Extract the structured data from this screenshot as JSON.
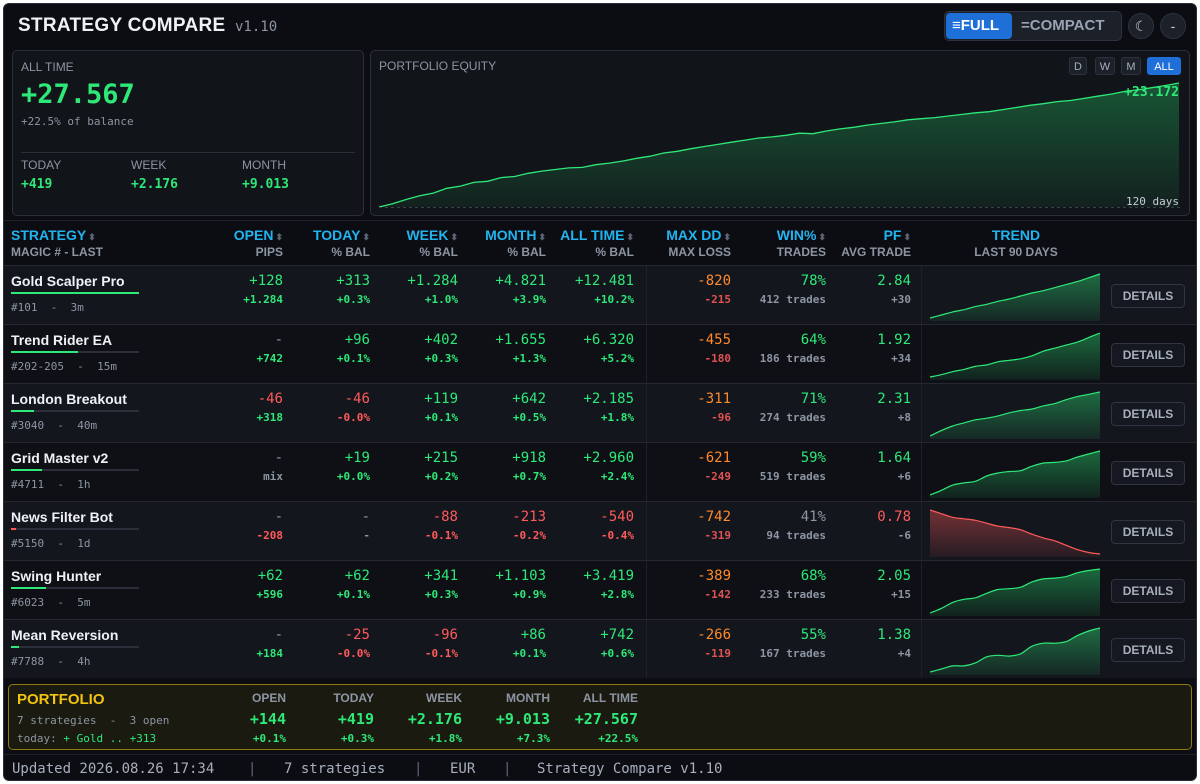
{
  "header": {
    "title": "STRATEGY COMPARE",
    "version": "v1.10",
    "mode_full": "FULL",
    "mode_compact": "COMPACT",
    "theme_icon": "moon-icon",
    "minimize_label": "-"
  },
  "summary": {
    "label": "ALL TIME",
    "value": "+27.567",
    "sub": "+22.5% of balance",
    "periods": [
      {
        "label": "TODAY",
        "value": "+419"
      },
      {
        "label": "WEEK",
        "value": "+2.176"
      },
      {
        "label": "MONTH",
        "value": "+9.013"
      }
    ]
  },
  "equity": {
    "label": "PORTFOLIO EQUITY",
    "ranges": [
      "D",
      "W",
      "M",
      "ALL"
    ],
    "active_range": "ALL",
    "end_value": "+23.172",
    "days_label": "120 days",
    "series": [
      0,
      600,
      1400,
      2100,
      2600,
      3500,
      3900,
      4600,
      4800,
      5500,
      5700,
      6300,
      6700,
      7000,
      7300,
      7400,
      7900,
      8200,
      8600,
      9100,
      9500,
      10100,
      10400,
      10900,
      11300,
      11700,
      12100,
      12500,
      12900,
      13100,
      13400,
      13800,
      13700,
      14200,
      14600,
      14900,
      15300,
      15600,
      15900,
      16300,
      16500,
      16700,
      17000,
      17300,
      17600,
      17800,
      18200,
      18600,
      19000,
      19300,
      19700,
      19900,
      20300,
      20700,
      21100,
      21600,
      21900,
      22300,
      22700,
      23172
    ],
    "colors": {
      "line": "#2ee878",
      "fill": "#1c6b3f"
    }
  },
  "columns": [
    {
      "t1": "STRATEGY",
      "t2": "MAGIC # - LAST"
    },
    {
      "t1": "OPEN",
      "t2": "PIPS"
    },
    {
      "t1": "TODAY",
      "t2": "% BAL"
    },
    {
      "t1": "WEEK",
      "t2": "% BAL"
    },
    {
      "t1": "MONTH",
      "t2": "% BAL"
    },
    {
      "t1": "ALL TIME",
      "t2": "% BAL"
    },
    {
      "t1": "MAX DD",
      "t2": "MAX LOSS"
    },
    {
      "t1": "WIN%",
      "t2": "TRADES"
    },
    {
      "t1": "PF",
      "t2": "AVG TRADE"
    },
    {
      "t1": "TREND",
      "t2": "LAST 90 DAYS"
    }
  ],
  "details_label": "DETAILS",
  "rows": [
    {
      "name": "Gold Scalper Pro",
      "magic": "#101",
      "last": "3m",
      "bar": 1.0,
      "bar_color": "#2ee878",
      "open": "+128",
      "open_sub": "+1.284",
      "today": "+313",
      "today_pct": "+0.3%",
      "week": "+1.284",
      "week_pct": "+1.0%",
      "month": "+4.821",
      "month_pct": "+3.9%",
      "alltime": "+12.481",
      "alltime_pct": "+10.2%",
      "maxdd": "-820",
      "maxloss": "-215",
      "win": "78%",
      "trades": "412 trades",
      "pf": "2.84",
      "avg": "+30",
      "trend": [
        2,
        6,
        10,
        13,
        17,
        20,
        24,
        27,
        31,
        35,
        38,
        42,
        46,
        50,
        55,
        60
      ],
      "trend_color": "#2ee878"
    },
    {
      "name": "Trend Rider EA",
      "magic": "#202-205",
      "last": "15m",
      "bar": 0.52,
      "bar_color": "#2ee878",
      "open": "-",
      "open_sub": "+742",
      "today": "+96",
      "today_pct": "+0.1%",
      "week": "+402",
      "week_pct": "+0.3%",
      "month": "+1.655",
      "month_pct": "+1.3%",
      "alltime": "+6.320",
      "alltime_pct": "+5.2%",
      "maxdd": "-455",
      "maxloss": "-180",
      "win": "64%",
      "trades": "186 trades",
      "pf": "1.92",
      "avg": "+34",
      "trend": [
        2,
        5,
        9,
        12,
        16,
        18,
        22,
        24,
        26,
        30,
        36,
        40,
        44,
        48,
        54,
        60
      ],
      "trend_color": "#2ee878"
    },
    {
      "name": "London Breakout",
      "magic": "#3040",
      "last": "40m",
      "bar": 0.18,
      "bar_color": "#2ee878",
      "open": "-46",
      "open_sub": "+318",
      "today": "-46",
      "today_pct": "-0.0%",
      "week": "+119",
      "week_pct": "+0.1%",
      "month": "+642",
      "month_pct": "+0.5%",
      "alltime": "+2.185",
      "alltime_pct": "+1.8%",
      "maxdd": "-311",
      "maxloss": "-96",
      "win": "71%",
      "trades": "274 trades",
      "pf": "2.31",
      "avg": "+8",
      "trend": [
        3,
        10,
        16,
        20,
        24,
        26,
        29,
        33,
        36,
        38,
        42,
        45,
        50,
        54,
        57,
        60
      ],
      "trend_color": "#2ee878"
    },
    {
      "name": "Grid Master v2",
      "magic": "#4711",
      "last": "1h",
      "bar": 0.24,
      "bar_color": "#2ee878",
      "open": "-",
      "open_sub": "mix",
      "today": "+19",
      "today_pct": "+0.0%",
      "week": "+215",
      "week_pct": "+0.2%",
      "month": "+918",
      "month_pct": "+0.7%",
      "alltime": "+2.960",
      "alltime_pct": "+2.4%",
      "maxdd": "-621",
      "maxloss": "-249",
      "win": "59%",
      "trades": "519 trades",
      "pf": "1.64",
      "avg": "+6",
      "trend": [
        2,
        8,
        15,
        18,
        20,
        27,
        31,
        33,
        34,
        40,
        44,
        45,
        47,
        52,
        56,
        60
      ],
      "trend_color": "#2ee878"
    },
    {
      "name": "News Filter Bot",
      "magic": "#5150",
      "last": "1d",
      "bar": 0.04,
      "bar_color": "#ff5a5a",
      "open": "-",
      "open_sub": "-208",
      "today": "-",
      "today_pct": "-",
      "week": "-88",
      "week_pct": "-0.1%",
      "month": "-213",
      "month_pct": "-0.2%",
      "alltime": "-540",
      "alltime_pct": "-0.4%",
      "maxdd": "-742",
      "maxloss": "-319",
      "win": "41%",
      "trades": "94 trades",
      "pf": "0.78",
      "avg": "-6",
      "trend": [
        60,
        55,
        50,
        48,
        46,
        42,
        38,
        36,
        33,
        27,
        22,
        18,
        12,
        6,
        2,
        0
      ],
      "trend_color": "#ff5a5a"
    },
    {
      "name": "Swing Hunter",
      "magic": "#6023",
      "last": "5m",
      "bar": 0.27,
      "bar_color": "#2ee878",
      "open": "+62",
      "open_sub": "+596",
      "today": "+62",
      "today_pct": "+0.1%",
      "week": "+341",
      "week_pct": "+0.3%",
      "month": "+1.103",
      "month_pct": "+0.9%",
      "alltime": "+3.419",
      "alltime_pct": "+2.8%",
      "maxdd": "-389",
      "maxloss": "-142",
      "win": "68%",
      "trades": "233 trades",
      "pf": "2.05",
      "avg": "+15",
      "trend": [
        2,
        8,
        16,
        20,
        22,
        28,
        33,
        34,
        36,
        43,
        47,
        48,
        50,
        55,
        58,
        60
      ],
      "trend_color": "#2ee878"
    },
    {
      "name": "Mean Reversion",
      "magic": "#7788",
      "last": "4h",
      "bar": 0.06,
      "bar_color": "#2ee878",
      "open": "-",
      "open_sub": "+184",
      "today": "-25",
      "today_pct": "-0.0%",
      "week": "-96",
      "week_pct": "-0.1%",
      "month": "+86",
      "month_pct": "+0.1%",
      "alltime": "+742",
      "alltime_pct": "+0.6%",
      "maxdd": "-266",
      "maxloss": "-119",
      "win": "55%",
      "trades": "167 trades",
      "pf": "1.38",
      "avg": "+4",
      "trend": [
        2,
        6,
        10,
        10,
        14,
        22,
        24,
        23,
        26,
        36,
        40,
        40,
        42,
        50,
        56,
        60
      ],
      "trend_color": "#2ee878"
    }
  ],
  "portfolio": {
    "title": "PORTFOLIO",
    "meta": "7 strategies  -  3 open",
    "top_label": "today:",
    "top_value": "+ Gold .. +313",
    "cols": [
      {
        "h": "OPEN",
        "v": "+144",
        "p": "+0.1%"
      },
      {
        "h": "TODAY",
        "v": "+419",
        "p": "+0.3%"
      },
      {
        "h": "WEEK",
        "v": "+2.176",
        "p": "+1.8%"
      },
      {
        "h": "MONTH",
        "v": "+9.013",
        "p": "+7.3%"
      },
      {
        "h": "ALL TIME",
        "v": "+27.567",
        "p": "+22.5%"
      }
    ]
  },
  "footer": {
    "updated": "Updated 2026.08.26 17:34",
    "strategies": "7 strategies",
    "currency": "EUR",
    "app": "Strategy Compare v1.10",
    "sep": "|"
  }
}
